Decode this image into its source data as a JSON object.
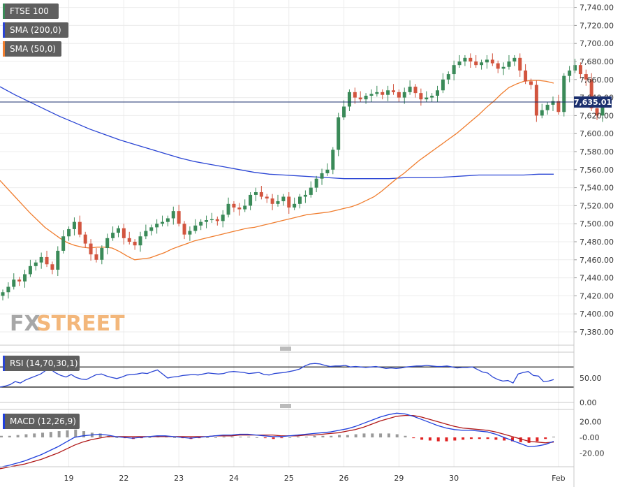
{
  "legend": {
    "instrument": "FTSE 100",
    "sma200": "SMA (200,0)",
    "sma50": "SMA (50,0)",
    "rsi": "RSI (14,70,30,1)",
    "macd": "MACD (12,26,9)"
  },
  "watermark": {
    "fx": "FX",
    "street": "STREET"
  },
  "price_tag": "7,635.01",
  "colors": {
    "up": "#3a8a58",
    "down": "#d2553f",
    "sma200": "#2a45d4",
    "sma50": "#f07d2e",
    "macd_line": "#1f3fdc",
    "signal_line": "#b01818",
    "hist_pos": "#9a9a9a",
    "hist_neg": "#e02424",
    "legend_bg": "#5f5f5f",
    "current_line": "#1b2f6e"
  },
  "chart_data": {
    "type": "candlestick",
    "instrument": "FTSE 100",
    "x_ticks": [
      "19",
      "22",
      "23",
      "24",
      "25",
      "26",
      "29",
      "30",
      "Feb"
    ],
    "x_tick_bar_index": [
      12,
      22,
      32,
      42,
      52,
      62,
      72,
      82,
      101
    ],
    "price_axis": {
      "ticks": [
        7380,
        7400,
        7420,
        7440,
        7460,
        7480,
        7500,
        7520,
        7540,
        7560,
        7580,
        7600,
        7620,
        7640,
        7660,
        7680,
        7700,
        7720,
        7740
      ],
      "tick_labels": [
        "7,380.00",
        "7,400.00",
        "7,420.00",
        "7,440.00",
        "7,460.00",
        "7,480.00",
        "7,500.00",
        "7,520.00",
        "7,540.00",
        "7,560.00",
        "7,580.00",
        "7,600.00",
        "7,620.00",
        "7,640.00",
        "7,660.00",
        "7,680.00",
        "7,700.00",
        "7,720.00",
        "7,740.00"
      ]
    },
    "current_price": 7635.01,
    "close": [
      7424,
      7430,
      7438,
      7436,
      7444,
      7453,
      7457,
      7463,
      7455,
      7449,
      7470,
      7486,
      7494,
      7502,
      7488,
      7478,
      7466,
      7460,
      7473,
      7484,
      7490,
      7495,
      7484,
      7480,
      7476,
      7486,
      7492,
      7496,
      7500,
      7502,
      7506,
      7514,
      7500,
      7488,
      7492,
      7498,
      7502,
      7504,
      7505,
      7503,
      7510,
      7522,
      7518,
      7516,
      7520,
      7532,
      7535,
      7530,
      7528,
      7522,
      7525,
      7530,
      7518,
      7522,
      7530,
      7532,
      7540,
      7550,
      7556,
      7560,
      7582,
      7618,
      7630,
      7646,
      7640,
      7638,
      7642,
      7644,
      7646,
      7643,
      7648,
      7646,
      7640,
      7646,
      7652,
      7645,
      7638,
      7640,
      7642,
      7648,
      7660,
      7666,
      7676,
      7680,
      7684,
      7680,
      7676,
      7679,
      7682,
      7678,
      7672,
      7674,
      7680,
      7684,
      7670,
      7658,
      7654,
      7620,
      7626,
      7632,
      7636,
      7624,
      7664,
      7670,
      7676,
      7666,
      7660,
      7628,
      7620,
      7636
    ],
    "sma50": [
      7548,
      7539,
      7530,
      7521,
      7512,
      7504,
      7496,
      7490,
      7484,
      7479,
      7476,
      7474,
      7473,
      7474,
      7474,
      7473,
      7469,
      7464,
      7460,
      7461,
      7462,
      7465,
      7468,
      7472,
      7475,
      7478,
      7481,
      7483,
      7485,
      7487,
      7489,
      7491,
      7493,
      7495,
      7496,
      7498,
      7500,
      7502,
      7504,
      7506,
      7508,
      7510,
      7511,
      7512,
      7513,
      7515,
      7517,
      7519,
      7522,
      7526,
      7530,
      7536,
      7543,
      7550,
      7556,
      7563,
      7570,
      7576,
      7582,
      7588,
      7594,
      7600,
      7607,
      7614,
      7621,
      7629,
      7636,
      7644,
      7651,
      7655,
      7658,
      7659,
      7659,
      7658,
      7656
    ],
    "sma200": [
      7652,
      7643,
      7635,
      7627,
      7619,
      7612,
      7605,
      7599,
      7593,
      7588,
      7583,
      7578,
      7573,
      7569,
      7566,
      7563,
      7560,
      7557,
      7555,
      7554,
      7553,
      7552,
      7551,
      7550,
      7550,
      7550,
      7550,
      7551,
      7551,
      7551,
      7552,
      7553,
      7554,
      7554,
      7554,
      7554,
      7555,
      7555
    ],
    "rsi": {
      "ticks": [
        0,
        50
      ],
      "tick_labels": [
        "0.00",
        "50.00"
      ],
      "overbought": 70,
      "oversold": 30,
      "values": [
        30,
        32,
        35,
        41,
        38,
        44,
        48,
        52,
        56,
        63,
        65,
        58,
        53,
        50,
        55,
        49,
        46,
        45,
        50,
        55,
        56,
        52,
        49,
        47,
        50,
        54,
        55,
        56,
        58,
        57,
        61,
        64,
        56,
        48,
        50,
        51,
        53,
        54,
        55,
        54,
        56,
        58,
        57,
        56,
        57,
        60,
        61,
        60,
        59,
        57,
        58,
        59,
        55,
        54,
        57,
        58,
        59,
        61,
        63,
        66,
        72,
        76,
        77,
        76,
        73,
        71,
        72,
        72,
        73,
        70,
        71,
        70,
        69,
        70,
        71,
        69,
        67,
        68,
        67,
        68,
        70,
        71,
        72,
        72,
        73,
        72,
        71,
        71,
        72,
        70,
        68,
        69,
        69,
        70,
        65,
        60,
        58,
        50,
        45,
        42,
        43,
        38,
        56,
        59,
        61,
        53,
        52,
        41,
        42,
        45
      ]
    },
    "macd": {
      "tick_labels": [
        "20.00",
        "-0.00",
        "-20.00"
      ],
      "ticks": [
        20,
        0,
        -20
      ],
      "macd_line": [
        -38,
        -36,
        -33,
        -30,
        -26,
        -22,
        -17,
        -12,
        -6,
        0,
        2,
        3,
        4,
        3,
        1,
        0,
        -1,
        0,
        1,
        2,
        2,
        1,
        0,
        -1,
        0,
        1,
        2,
        3,
        3,
        4,
        4,
        3,
        2,
        1,
        1,
        2,
        3,
        4,
        5,
        6,
        7,
        9,
        11,
        14,
        18,
        22,
        26,
        29,
        31,
        30,
        27,
        23,
        19,
        15,
        12,
        10,
        9,
        9,
        8,
        7,
        4,
        0,
        -4,
        -8,
        -12,
        -11,
        -9,
        -5
      ],
      "signal_line": [
        -40,
        -38,
        -36,
        -34,
        -31,
        -28,
        -24,
        -20,
        -15,
        -10,
        -6,
        -3,
        -1,
        1,
        1,
        1,
        1,
        1,
        1,
        1,
        1,
        1,
        1,
        1,
        1,
        1,
        2,
        2,
        2,
        3,
        3,
        3,
        3,
        3,
        2,
        2,
        2,
        3,
        3,
        4,
        5,
        6,
        8,
        10,
        13,
        17,
        21,
        24,
        27,
        28,
        28,
        26,
        23,
        20,
        17,
        14,
        12,
        11,
        10,
        9,
        7,
        4,
        1,
        -2,
        -5,
        -6,
        -7,
        -6
      ],
      "histogram": [
        2,
        2,
        3,
        4,
        5,
        6,
        7,
        8,
        9,
        10,
        8,
        6,
        5,
        2,
        0,
        -1,
        -2,
        -1,
        0,
        1,
        1,
        0,
        -1,
        -2,
        -1,
        0,
        0,
        1,
        1,
        1,
        1,
        0,
        -1,
        -2,
        -1,
        0,
        1,
        1,
        2,
        2,
        2,
        3,
        3,
        4,
        5,
        5,
        5,
        5,
        4,
        2,
        -1,
        -3,
        -4,
        -5,
        -5,
        -4,
        -3,
        -2,
        -2,
        -2,
        -3,
        -4,
        -5,
        -6,
        -7,
        -5,
        -2,
        1
      ]
    }
  }
}
